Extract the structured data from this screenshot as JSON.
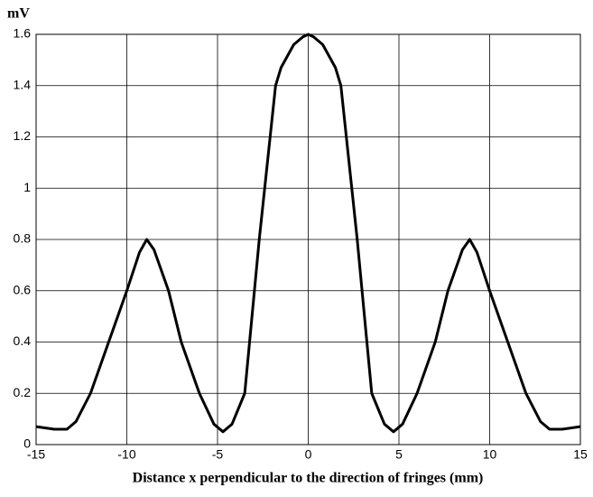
{
  "chart_data": {
    "type": "line",
    "ylabel": "mV",
    "xlabel": "Distance x perpendicular to the direction of fringes (mm)",
    "xlim": [
      -15,
      15
    ],
    "xticks": [
      -15,
      -10,
      -5,
      0,
      5,
      10,
      15
    ],
    "ylim": [
      0,
      1.6
    ],
    "yticks": [
      0,
      0.2,
      0.4,
      0.6,
      0.8,
      1,
      1.2,
      1.4,
      1.6
    ],
    "grid": true,
    "series": [
      {
        "color": "#000000",
        "x": [
          -15,
          -14,
          -13.3,
          -12.8,
          -12,
          -11,
          -10,
          -9.3,
          -8.9,
          -8.5,
          -7.7,
          -7,
          -6,
          -5.2,
          -4.7,
          -4.2,
          -3.5,
          -2.7,
          -1.8,
          -1.5,
          -0.8,
          -0.3,
          0,
          0.3,
          0.8,
          1.5,
          1.8,
          2.7,
          3.5,
          4.2,
          4.7,
          5.2,
          6,
          7,
          7.7,
          8.5,
          8.9,
          9.3,
          10,
          11,
          12,
          12.8,
          13.3,
          14,
          15
        ],
        "values": [
          0.07,
          0.06,
          0.06,
          0.09,
          0.2,
          0.4,
          0.6,
          0.75,
          0.8,
          0.76,
          0.6,
          0.4,
          0.2,
          0.08,
          0.05,
          0.08,
          0.2,
          0.8,
          1.4,
          1.47,
          1.56,
          1.59,
          1.6,
          1.59,
          1.56,
          1.47,
          1.4,
          0.8,
          0.2,
          0.08,
          0.05,
          0.08,
          0.2,
          0.4,
          0.6,
          0.76,
          0.8,
          0.75,
          0.6,
          0.4,
          0.2,
          0.09,
          0.06,
          0.06,
          0.07
        ]
      }
    ]
  }
}
